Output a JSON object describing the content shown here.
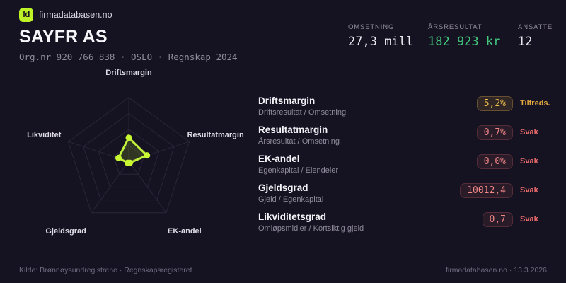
{
  "brand": {
    "logo_text": "fd",
    "name": "firmadatabasen.no"
  },
  "header": {
    "company_name": "SAYFR AS",
    "meta": "Org.nr 920 766 838  ·  OSLO  ·  Regnskap 2024"
  },
  "stats": [
    {
      "label": "OMSETNING",
      "value": "27,3 mill",
      "color": "white"
    },
    {
      "label": "ÅRSRESULTAT",
      "value": "182 923 kr",
      "color": "green"
    },
    {
      "label": "ANSATTE",
      "value": "12",
      "color": "white"
    }
  ],
  "chart_data": {
    "type": "radar",
    "axes": [
      "Driftsmargin",
      "Resultatmargin",
      "EK-andel",
      "Gjeldsgrad",
      "Likviditet"
    ],
    "values": [
      5.2,
      0.7,
      0.0,
      10012.4,
      0.7
    ],
    "values_display": [
      "5,2%",
      "0,7%",
      "0,0%",
      "10012,4",
      "0,7"
    ],
    "normalized_radii": [
      0.37,
      0.3,
      0.03,
      0.03,
      0.17
    ],
    "rings": 4,
    "grid_on": true,
    "grid_color": "#2a2638",
    "stroke_color": "#c3f23c",
    "dot_color": "#c9f731",
    "fill_color": "rgba(191,242,43,0.16)",
    "label_color": "#dedbe6"
  },
  "metrics": [
    {
      "title": "Driftsmargin",
      "formula": "Driftsresultat / Omsetning",
      "value": "5,2%",
      "status": "Tilfreds.",
      "level": "ok"
    },
    {
      "title": "Resultatmargin",
      "formula": "Årsresultat / Omsetning",
      "value": "0,7%",
      "status": "Svak",
      "level": "bad"
    },
    {
      "title": "EK-andel",
      "formula": "Egenkapital / Eiendeler",
      "value": "0,0%",
      "status": "Svak",
      "level": "bad"
    },
    {
      "title": "Gjeldsgrad",
      "formula": "Gjeld / Egenkapital",
      "value": "10012,4",
      "status": "Svak",
      "level": "bad"
    },
    {
      "title": "Likviditetsgrad",
      "formula": "Omløpsmidler / Kortsiktig gjeld",
      "value": "0,7",
      "status": "Svak",
      "level": "bad"
    }
  ],
  "footer": {
    "left": "Kilde: Brønnøysundregistrene · Regnskapsregisteret",
    "right": "firmadatabasen.no · 13.3.2026"
  },
  "colors": {
    "background": "#151221",
    "accent": "#bdf226",
    "green": "#42c97e",
    "amber": "#ecbf4e",
    "red": "#e96a6a"
  }
}
